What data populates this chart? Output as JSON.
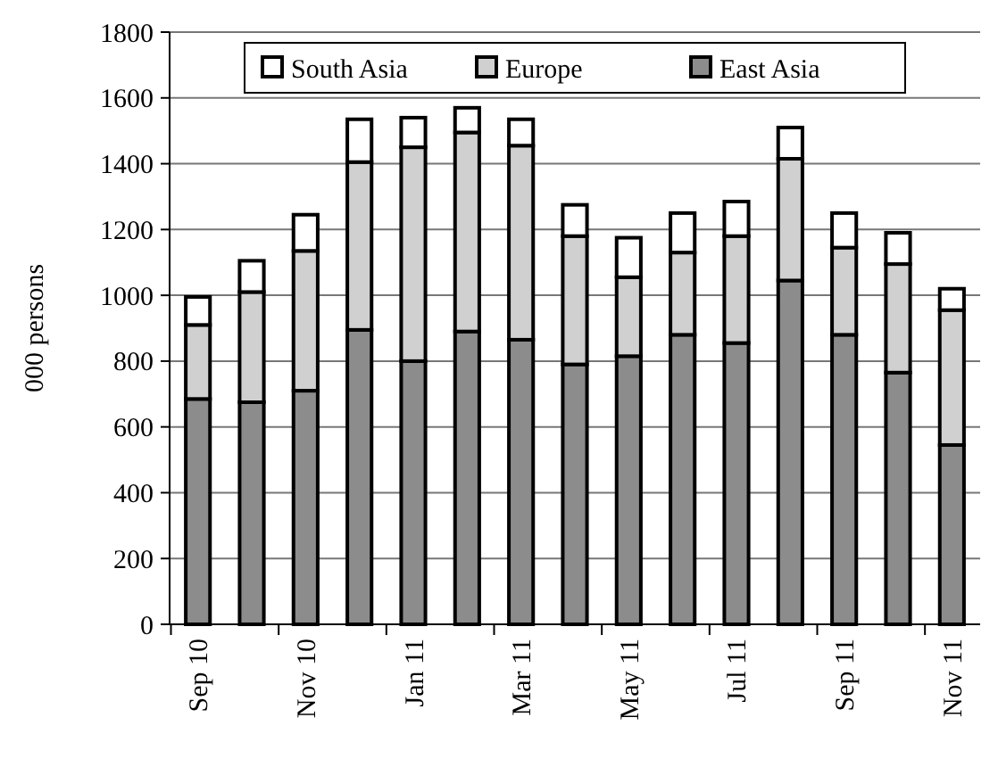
{
  "chart_data": {
    "type": "bar",
    "stacked": true,
    "ylabel": "000 persons",
    "categories": [
      "Sep 10",
      null,
      "Nov 10",
      null,
      "Jan 11",
      null,
      "Mar 11",
      null,
      "May 11",
      null,
      "Jul 11",
      null,
      "Sep 11",
      null,
      "Nov 11"
    ],
    "series": [
      {
        "name": "East Asia",
        "color": "#8c8c8c",
        "values": [
          685,
          675,
          710,
          895,
          800,
          890,
          865,
          790,
          815,
          880,
          855,
          1045,
          880,
          765,
          545
        ]
      },
      {
        "name": "Europe",
        "color": "#d0d0d0",
        "values": [
          225,
          335,
          425,
          510,
          650,
          605,
          590,
          390,
          240,
          250,
          325,
          370,
          265,
          330,
          410
        ]
      },
      {
        "name": "South Asia",
        "color": "#ffffff",
        "values": [
          85,
          95,
          110,
          130,
          90,
          75,
          80,
          95,
          120,
          120,
          105,
          95,
          105,
          95,
          65
        ]
      }
    ],
    "ylim": [
      0,
      1800
    ],
    "yticks": [
      0,
      200,
      400,
      600,
      800,
      1000,
      1200,
      1400,
      1600,
      1800
    ],
    "grid": "y",
    "legend": "top"
  }
}
